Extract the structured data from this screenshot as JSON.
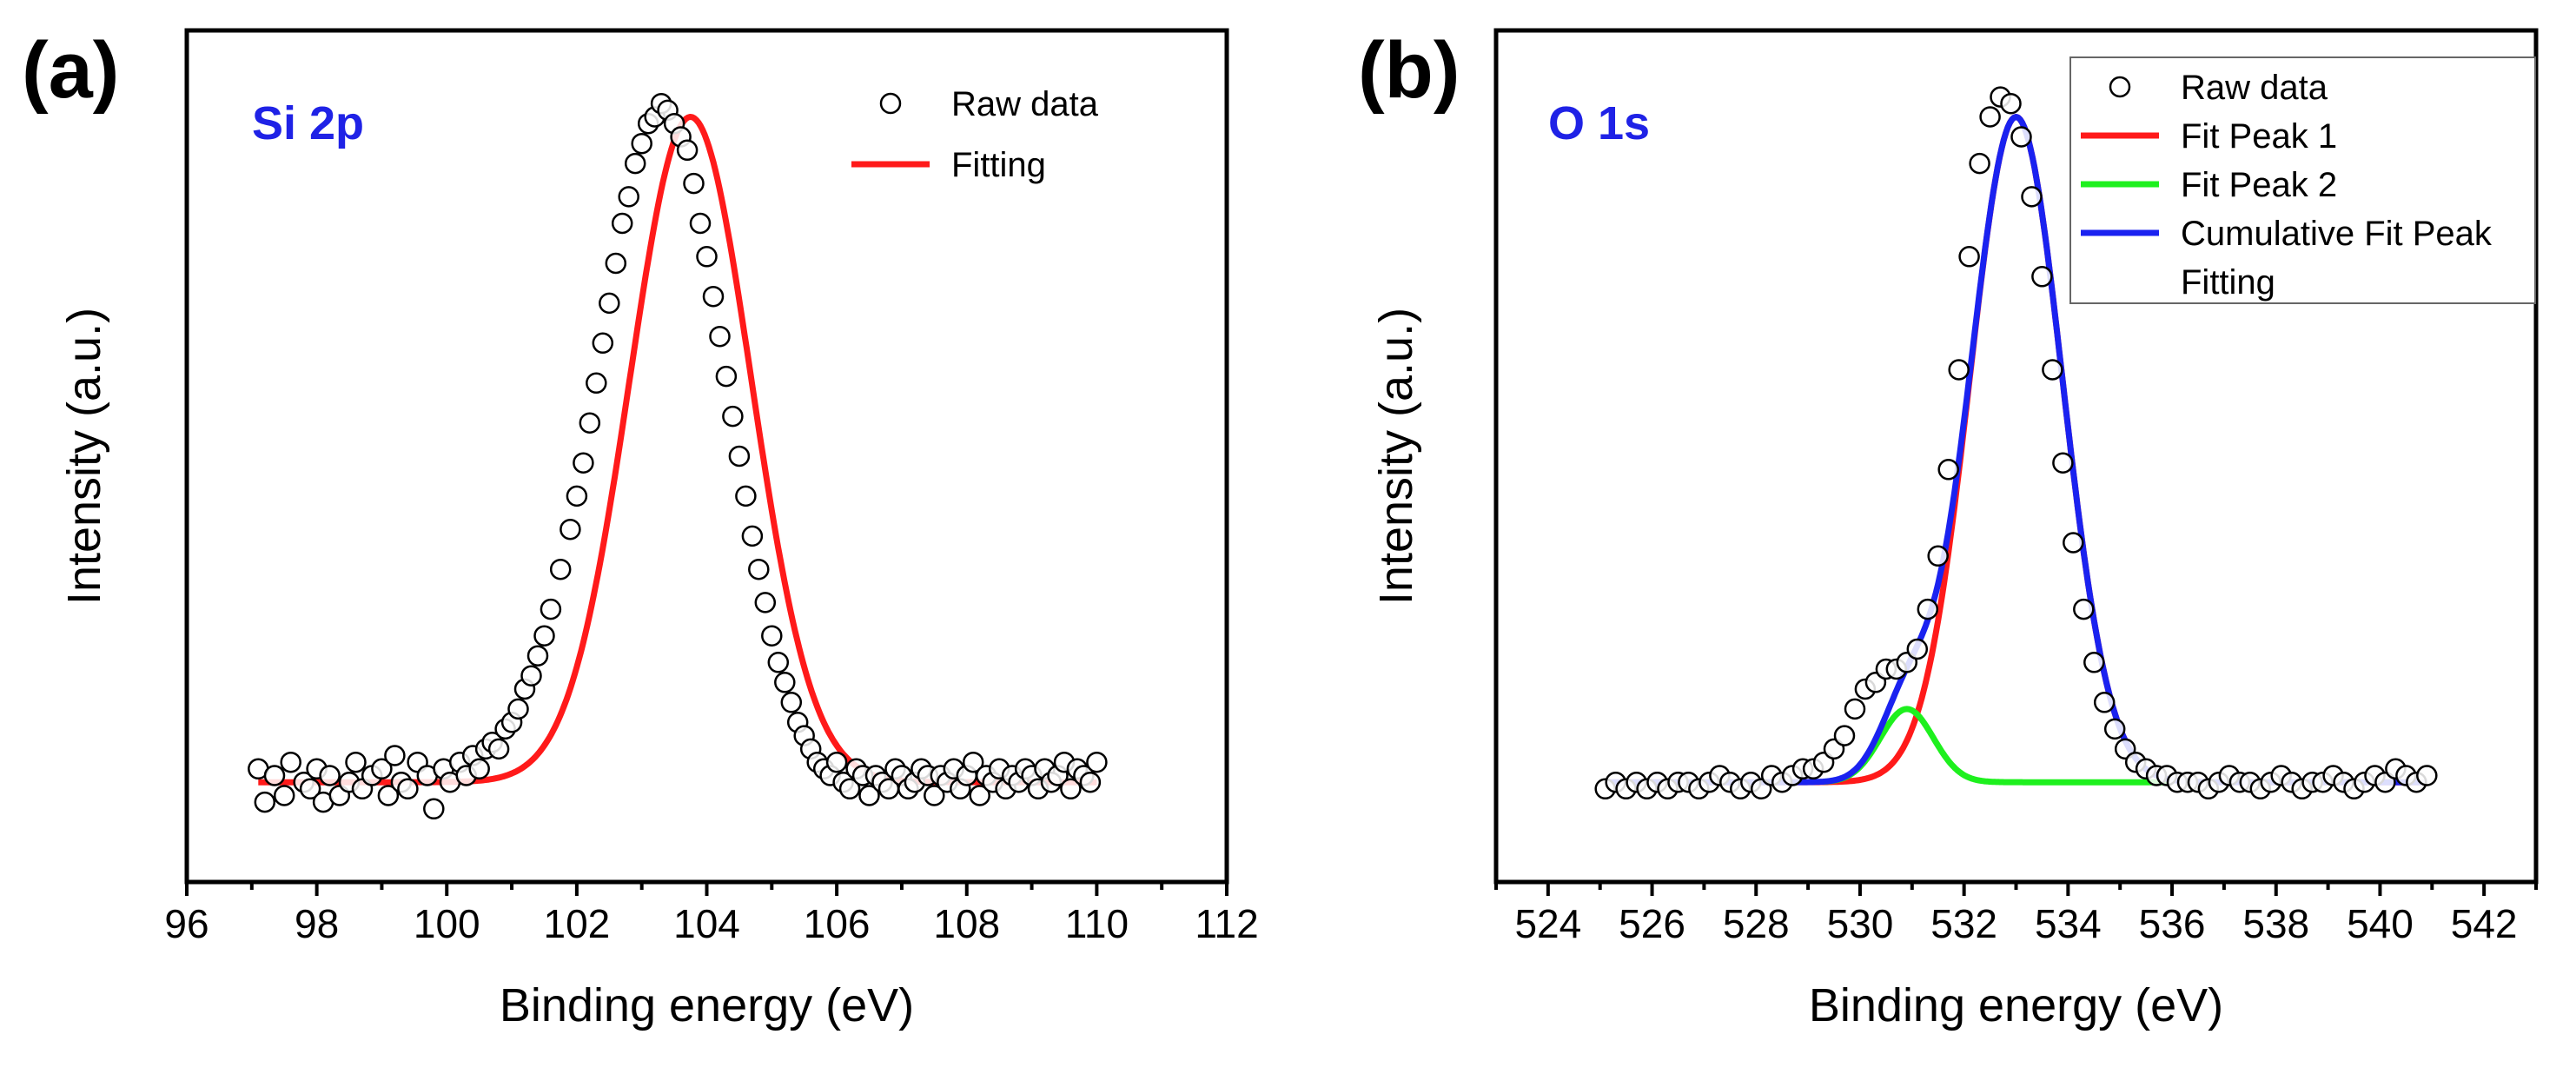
{
  "chart_data": [
    {
      "type": "scatter",
      "panel_label": "(a)",
      "title": "Si 2p",
      "title_color": "#1f22e6",
      "xlabel": "Binding energy (eV)",
      "ylabel": "Intensity (a.u.)",
      "xlim": [
        96,
        112
      ],
      "ylim": [
        -0.15,
        1.13
      ],
      "xticks": [
        96,
        98,
        100,
        102,
        104,
        106,
        108,
        110,
        112
      ],
      "xtick_labels": [
        "96",
        "98",
        "100",
        "102",
        "104",
        "106",
        "108",
        "110",
        "112"
      ],
      "legend": [
        {
          "label": "Raw data",
          "kind": "marker",
          "color": "#000000"
        },
        {
          "label": "Fitting",
          "kind": "line",
          "color": "#ff1a1a"
        }
      ],
      "legend_position": "top-right",
      "series": [
        {
          "name": "Raw data",
          "kind": "scatter",
          "color": "#000000",
          "x": [
            97.1,
            97.2,
            97.35,
            97.5,
            97.6,
            97.8,
            97.9,
            98.0,
            98.1,
            98.2,
            98.35,
            98.5,
            98.6,
            98.7,
            98.85,
            99.0,
            99.1,
            99.2,
            99.3,
            99.4,
            99.55,
            99.7,
            99.8,
            99.95,
            100.05,
            100.2,
            100.3,
            100.4,
            100.5,
            100.6,
            100.7,
            100.8,
            100.9,
            101.0,
            101.1,
            101.2,
            101.3,
            101.4,
            101.5,
            101.6,
            101.75,
            101.9,
            102.0,
            102.1,
            102.2,
            102.3,
            102.4,
            102.5,
            102.6,
            102.7,
            102.8,
            102.9,
            103.0,
            103.1,
            103.2,
            103.3,
            103.4,
            103.5,
            103.6,
            103.7,
            103.8,
            103.9,
            104.0,
            104.1,
            104.2,
            104.3,
            104.4,
            104.5,
            104.6,
            104.7,
            104.8,
            104.9,
            105.0,
            105.1,
            105.2,
            105.3,
            105.4,
            105.5,
            105.6,
            105.7,
            105.8,
            105.9,
            106.0,
            106.1,
            106.2,
            106.3,
            106.4,
            106.5,
            106.6,
            106.7,
            106.8,
            106.9,
            107.0,
            107.1,
            107.2,
            107.3,
            107.4,
            107.5,
            107.6,
            107.7,
            107.8,
            107.9,
            108.0,
            108.1,
            108.2,
            108.3,
            108.4,
            108.5,
            108.6,
            108.7,
            108.8,
            108.9,
            109.0,
            109.1,
            109.2,
            109.3,
            109.4,
            109.5,
            109.6,
            109.7,
            109.8,
            109.9,
            110.0
          ],
          "y": [
            0.02,
            -0.03,
            0.01,
            -0.02,
            0.03,
            0.0,
            -0.01,
            0.02,
            -0.03,
            0.01,
            -0.02,
            0.0,
            0.03,
            -0.01,
            0.01,
            0.02,
            -0.02,
            0.04,
            0.0,
            -0.01,
            0.03,
            0.01,
            -0.04,
            0.02,
            0.0,
            0.03,
            0.01,
            0.04,
            0.02,
            0.05,
            0.06,
            0.05,
            0.08,
            0.09,
            0.11,
            0.14,
            0.16,
            0.19,
            0.22,
            0.26,
            0.32,
            0.38,
            0.43,
            0.48,
            0.54,
            0.6,
            0.66,
            0.72,
            0.78,
            0.84,
            0.88,
            0.93,
            0.96,
            0.99,
            1.0,
            1.02,
            1.01,
            0.99,
            0.97,
            0.95,
            0.9,
            0.84,
            0.79,
            0.73,
            0.67,
            0.61,
            0.55,
            0.49,
            0.43,
            0.37,
            0.32,
            0.27,
            0.22,
            0.18,
            0.15,
            0.12,
            0.09,
            0.07,
            0.05,
            0.03,
            0.02,
            0.01,
            0.03,
            0.0,
            -0.01,
            0.02,
            0.01,
            -0.02,
            0.01,
            0.0,
            -0.01,
            0.02,
            0.01,
            -0.01,
            0.0,
            0.02,
            0.01,
            -0.02,
            0.01,
            0.0,
            0.02,
            -0.01,
            0.01,
            0.03,
            -0.02,
            0.01,
            0.0,
            0.02,
            -0.01,
            0.01,
            0.0,
            0.02,
            0.01,
            -0.01,
            0.02,
            0.0,
            0.01,
            0.03,
            -0.01,
            0.02,
            0.01,
            0.0,
            0.03
          ]
        },
        {
          "name": "Fitting",
          "kind": "gaussian",
          "color": "#ff1a1a",
          "baseline": 0.0,
          "center": 103.75,
          "amplitude": 1.0,
          "fwhm": 2.2,
          "x_range": [
            97.1,
            110.0
          ]
        }
      ]
    },
    {
      "type": "scatter",
      "panel_label": "(b)",
      "title": "O 1s",
      "title_color": "#1f22e6",
      "xlabel": "Binding energy (eV)",
      "ylabel": "Intensity (a.u.)",
      "xlim": [
        523,
        543
      ],
      "ylim": [
        -0.15,
        1.13
      ],
      "xticks": [
        524,
        526,
        528,
        530,
        532,
        534,
        536,
        538,
        540,
        542
      ],
      "xtick_labels": [
        "524",
        "526",
        "528",
        "530",
        "532",
        "534",
        "536",
        "538",
        "540",
        "542"
      ],
      "legend": [
        {
          "label": "Raw data",
          "kind": "marker",
          "color": "#000000"
        },
        {
          "label": "Fit Peak 1",
          "kind": "line",
          "color": "#ff1a1a"
        },
        {
          "label": "Fit Peak 2",
          "kind": "line",
          "color": "#1ef01e"
        },
        {
          "label": "Cumulative Fit Peak",
          "kind": "line",
          "color": "#1a22f0"
        },
        {
          "label": "Fitting",
          "kind": "none",
          "color": "#ffffff"
        }
      ],
      "legend_position": "top-right",
      "series": [
        {
          "name": "Raw data",
          "kind": "scatter",
          "color": "#000000",
          "x": [
            525.1,
            525.3,
            525.5,
            525.7,
            525.9,
            526.1,
            526.3,
            526.5,
            526.7,
            526.9,
            527.1,
            527.3,
            527.5,
            527.7,
            527.9,
            528.1,
            528.3,
            528.5,
            528.7,
            528.9,
            529.1,
            529.3,
            529.5,
            529.7,
            529.9,
            530.1,
            530.3,
            530.5,
            530.7,
            530.9,
            531.1,
            531.3,
            531.5,
            531.7,
            531.9,
            532.1,
            532.3,
            532.5,
            532.7,
            532.9,
            533.1,
            533.3,
            533.5,
            533.7,
            533.9,
            534.1,
            534.3,
            534.5,
            534.7,
            534.9,
            535.1,
            535.3,
            535.5,
            535.7,
            535.9,
            536.1,
            536.3,
            536.5,
            536.7,
            536.9,
            537.1,
            537.3,
            537.5,
            537.7,
            537.9,
            538.1,
            538.3,
            538.5,
            538.7,
            538.9,
            539.1,
            539.3,
            539.5,
            539.7,
            539.9,
            540.1,
            540.3,
            540.5,
            540.7,
            540.9
          ],
          "y": [
            -0.01,
            0.0,
            -0.01,
            0.0,
            -0.01,
            0.0,
            -0.01,
            0.0,
            0.0,
            -0.01,
            0.0,
            0.01,
            0.0,
            -0.01,
            0.0,
            -0.01,
            0.01,
            0.0,
            0.01,
            0.02,
            0.02,
            0.03,
            0.05,
            0.07,
            0.11,
            0.14,
            0.15,
            0.17,
            0.17,
            0.18,
            0.2,
            0.26,
            0.34,
            0.47,
            0.62,
            0.79,
            0.93,
            1.0,
            1.03,
            1.02,
            0.97,
            0.88,
            0.76,
            0.62,
            0.48,
            0.36,
            0.26,
            0.18,
            0.12,
            0.08,
            0.05,
            0.03,
            0.02,
            0.01,
            0.01,
            0.0,
            0.0,
            0.0,
            -0.01,
            0.0,
            0.01,
            0.0,
            0.0,
            -0.01,
            0.0,
            0.01,
            0.0,
            -0.01,
            0.0,
            0.0,
            0.01,
            0.0,
            -0.01,
            0.0,
            0.01,
            0.0,
            0.02,
            0.01,
            0.0,
            0.01
          ]
        },
        {
          "name": "Fit Peak 1",
          "kind": "gaussian",
          "color": "#ff1a1a",
          "baseline": 0.0,
          "center": 533.0,
          "amplitude": 1.0,
          "fwhm": 2.1,
          "x_range": [
            525.1,
            540.9
          ]
        },
        {
          "name": "Fit Peak 2",
          "kind": "gaussian",
          "color": "#1ef01e",
          "baseline": 0.0,
          "center": 530.9,
          "amplitude": 0.11,
          "fwhm": 1.2,
          "x_range": [
            529.3,
            535.9
          ]
        },
        {
          "name": "Cumulative Fit Peak",
          "kind": "sum",
          "color": "#1a22f0",
          "components": [
            "Fit Peak 1",
            "Fit Peak 2"
          ],
          "x_range": [
            525.1,
            540.9
          ]
        }
      ]
    }
  ]
}
